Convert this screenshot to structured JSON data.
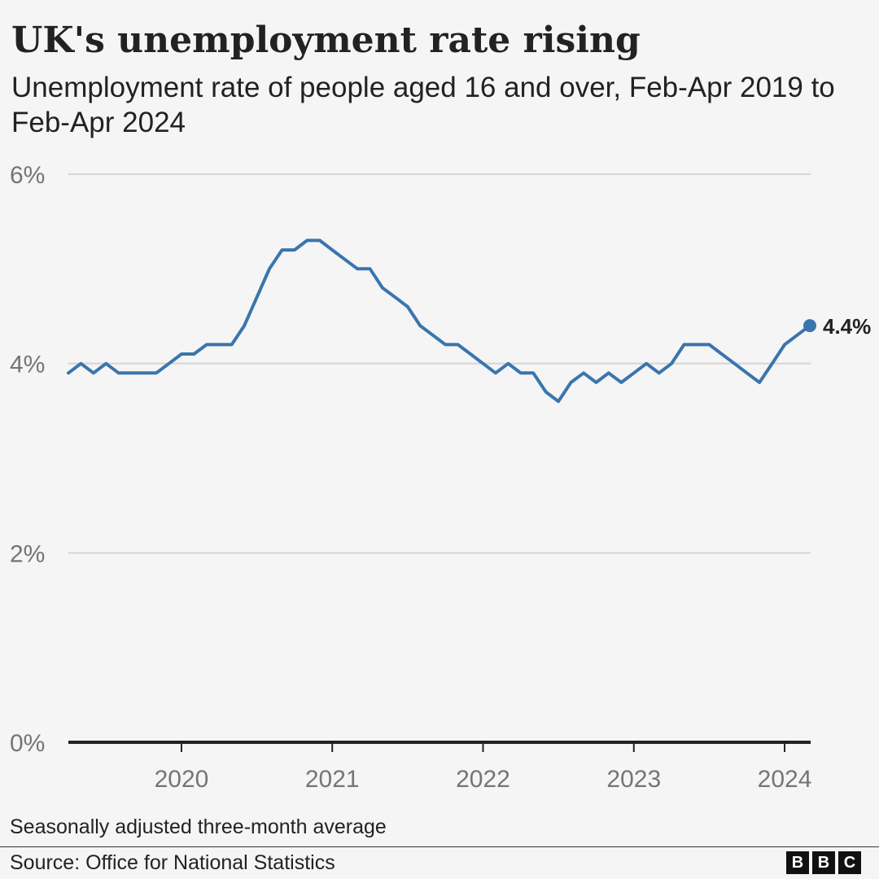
{
  "title": "UK's unemployment rate rising",
  "subtitle": "Unemployment rate of people aged 16 and over, Feb-Apr 2019 to Feb-Apr 2024",
  "note": "Seasonally adjusted three-month average",
  "source": "Source: Office for National Statistics",
  "logo": [
    "B",
    "B",
    "C"
  ],
  "colors": {
    "line": "#3a75ad",
    "grid": "#d5d5d5",
    "axis": "#222222",
    "tick_text": "#757575"
  },
  "chart_data": {
    "type": "line",
    "title": "UK's unemployment rate rising",
    "xlabel": "",
    "ylabel": "",
    "ylim": [
      0,
      6
    ],
    "yticks": [
      0,
      2,
      4,
      6
    ],
    "ytick_labels": [
      "0%",
      "2%",
      "4%",
      "6%"
    ],
    "xlim": [
      2019.25,
      2024.167
    ],
    "xticks": [
      2020,
      2021,
      2022,
      2023,
      2024
    ],
    "xtick_labels": [
      "2020",
      "2021",
      "2022",
      "2023",
      "2024"
    ],
    "grid": true,
    "series": [
      {
        "name": "Unemployment rate",
        "x": [
          2019.25,
          2019.333,
          2019.417,
          2019.5,
          2019.583,
          2019.667,
          2019.75,
          2019.833,
          2019.917,
          2020.0,
          2020.083,
          2020.167,
          2020.25,
          2020.333,
          2020.417,
          2020.5,
          2020.583,
          2020.667,
          2020.75,
          2020.833,
          2020.917,
          2021.0,
          2021.083,
          2021.167,
          2021.25,
          2021.333,
          2021.417,
          2021.5,
          2021.583,
          2021.667,
          2021.75,
          2021.833,
          2021.917,
          2022.0,
          2022.083,
          2022.167,
          2022.25,
          2022.333,
          2022.417,
          2022.5,
          2022.583,
          2022.667,
          2022.75,
          2022.833,
          2022.917,
          2023.0,
          2023.083,
          2023.167,
          2023.25,
          2023.333,
          2023.417,
          2023.5,
          2023.583,
          2023.667,
          2023.75,
          2023.833,
          2023.917,
          2024.0,
          2024.083,
          2024.167
        ],
        "values": [
          3.9,
          4.0,
          3.9,
          4.0,
          3.9,
          3.9,
          3.9,
          3.9,
          4.0,
          4.1,
          4.1,
          4.2,
          4.2,
          4.2,
          4.4,
          4.7,
          5.0,
          5.2,
          5.2,
          5.3,
          5.3,
          5.2,
          5.1,
          5.0,
          5.0,
          4.8,
          4.7,
          4.6,
          4.4,
          4.3,
          4.2,
          4.2,
          4.1,
          4.0,
          3.9,
          4.0,
          3.9,
          3.9,
          3.7,
          3.6,
          3.8,
          3.9,
          3.8,
          3.9,
          3.8,
          3.9,
          4.0,
          3.9,
          4.0,
          4.2,
          4.2,
          4.2,
          4.1,
          4.0,
          3.9,
          3.8,
          4.0,
          4.2,
          4.3,
          4.4
        ]
      }
    ],
    "annotations": [
      {
        "label": "4.4%",
        "x": 2024.167,
        "y": 4.4
      }
    ]
  }
}
